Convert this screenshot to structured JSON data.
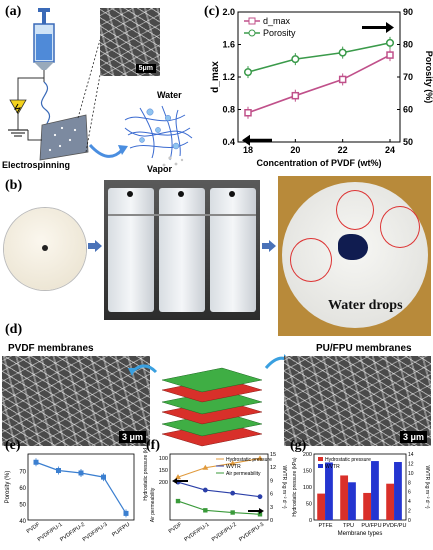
{
  "panels": {
    "a": {
      "label": "(a)",
      "electrospinning_label": "Electrospinning",
      "water_label": "Water",
      "vapor_label": "Vapor",
      "sem_scale": "5μm"
    },
    "b": {
      "label": "(b)",
      "water_drops_label": "Water drops"
    },
    "c": {
      "label": "(c)"
    },
    "d": {
      "label": "(d)",
      "left_title": "PVDF membranes",
      "right_title": "PU/FPU membranes",
      "left_scale": "3 μm",
      "right_scale": "3 μm"
    },
    "e": {
      "label": "(e)"
    },
    "f": {
      "label": "(f)"
    },
    "g": {
      "label": "(g)"
    }
  },
  "chart_data": [
    {
      "id": "c",
      "type": "line",
      "x": [
        18,
        20,
        22,
        24
      ],
      "xlabel": "Concentration of PVDF (wt%)",
      "ylabel_left": "d_max",
      "ylabel_right": "Porosity (%)",
      "ylim_left": [
        0.4,
        2.0
      ],
      "ylim_right": [
        50,
        90
      ],
      "left_ticks": [
        "0.4",
        "0.8",
        "1.2",
        "1.6",
        "2.0"
      ],
      "right_ticks": [
        "50",
        "60",
        "70",
        "80",
        "90"
      ],
      "x_ticks": [
        "18",
        "20",
        "22",
        "24"
      ],
      "series": [
        {
          "name": "d_max",
          "axis": "left",
          "color": "#c0508a",
          "values": [
            0.76,
            0.97,
            1.17,
            1.47
          ]
        },
        {
          "name": "Porosity",
          "axis": "right",
          "color": "#3a9a4a",
          "values": [
            71.5,
            75.5,
            77.5,
            80.5
          ]
        }
      ],
      "legend": "top-left"
    },
    {
      "id": "e",
      "type": "line",
      "categories": [
        "PVDF",
        "PVDF/PU-1",
        "PVDF/PU-2",
        "PVDF/PU-3",
        "PU/FPU"
      ],
      "ylabel": "Porosity (%)",
      "ylim": [
        40,
        80
      ],
      "y_ticks": [
        "40",
        "50",
        "60",
        "70"
      ],
      "series": [
        {
          "color": "#3b7fd0",
          "values": [
            75,
            70,
            68.5,
            66,
            44
          ]
        }
      ]
    },
    {
      "id": "f",
      "type": "line",
      "categories": [
        "PVDF",
        "PVDF/PU-1",
        "PVDF/PU-2",
        "PVDF/PU-3"
      ],
      "ylabel_left_top": "Hydrostatic pressure (kPa)",
      "ylabel_left_bottom": "Air permeability",
      "ylabel_right": "WVTR (kg m⁻² d⁻¹)",
      "left_ticks": [
        "100",
        "150",
        "200"
      ],
      "right_ticks": [
        "0",
        "3",
        "6",
        "9",
        "12",
        "15"
      ],
      "legend": "top-right",
      "series": [
        {
          "name": "Hydrostatic pressure",
          "color": "#e09a3c",
          "values": [
            108,
            125,
            133,
            142
          ]
        },
        {
          "name": "WVTR",
          "color": "#2b3fa8",
          "values": [
            8.6,
            6.8,
            6.1,
            5.3
          ]
        },
        {
          "name": "Air permeability",
          "color": "#3a9a3a",
          "values": [
            4.3,
            2.2,
            1.7,
            1.3
          ]
        }
      ]
    },
    {
      "id": "g",
      "type": "bar",
      "categories": [
        "PTFE",
        "TPU",
        "PU/FPU",
        "PVDF/PU"
      ],
      "xlabel": "Membrane types",
      "ylabel_left": "Hydrostatic pressure (kPa)",
      "ylabel_right": "WVTR (kg m⁻² d⁻¹)",
      "ylim_left": [
        0,
        200
      ],
      "ylim_right": [
        0,
        14
      ],
      "left_ticks": [
        "0",
        "50",
        "100",
        "150",
        "200"
      ],
      "right_ticks": [
        "0",
        "2",
        "4",
        "6",
        "8",
        "10",
        "12",
        "14"
      ],
      "legend": "top-left",
      "series": [
        {
          "name": "Hydrostatic pressure",
          "axis": "left",
          "color": "#d9302a",
          "values": [
            80,
            135,
            82,
            110
          ]
        },
        {
          "name": "WVTR",
          "axis": "right",
          "color": "#2435d0",
          "values": [
            12.2,
            8,
            12.5,
            12.3
          ]
        }
      ]
    }
  ]
}
